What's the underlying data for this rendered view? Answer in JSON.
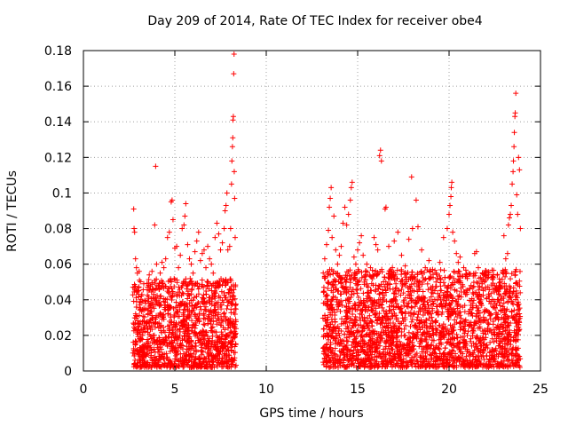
{
  "chart_data": {
    "type": "scatter",
    "title": "Day 209 of 2014, Rate Of TEC Index for receiver obe4",
    "xlabel": "GPS time / hours",
    "ylabel": "ROTI / TECUs",
    "xlim": [
      0,
      25
    ],
    "ylim": [
      0,
      0.18
    ],
    "x_ticks": [
      0,
      5,
      10,
      15,
      20,
      25
    ],
    "x_tick_labels": [
      "0",
      "5",
      "10",
      "15",
      "20",
      "25"
    ],
    "y_ticks": [
      0,
      0.02,
      0.04,
      0.06,
      0.08,
      0.1,
      0.12,
      0.14,
      0.16,
      0.18
    ],
    "y_tick_labels": [
      "0",
      "0.02",
      "0.04",
      "0.06",
      "0.08",
      "0.1",
      "0.12",
      "0.14",
      "0.16",
      "0.18"
    ],
    "grid": true,
    "marker": "+",
    "color": "#ff0000",
    "series": [
      {
        "points": [
          [
            2.75,
            0.091
          ],
          [
            2.77,
            0.08
          ],
          [
            2.8,
            0.078
          ],
          [
            2.85,
            0.063
          ],
          [
            2.9,
            0.058
          ],
          [
            2.95,
            0.055
          ],
          [
            3.0,
            0.045
          ],
          [
            3.05,
            0.056
          ],
          [
            3.2,
            0.043
          ],
          [
            3.3,
            0.049
          ],
          [
            3.4,
            0.038
          ],
          [
            3.5,
            0.047
          ],
          [
            3.6,
            0.054
          ],
          [
            3.75,
            0.056
          ],
          [
            3.9,
            0.082
          ],
          [
            3.95,
            0.115
          ],
          [
            4.0,
            0.06
          ],
          [
            4.1,
            0.048
          ],
          [
            4.2,
            0.055
          ],
          [
            4.3,
            0.061
          ],
          [
            4.4,
            0.058
          ],
          [
            4.5,
            0.063
          ],
          [
            4.6,
            0.075
          ],
          [
            4.7,
            0.078
          ],
          [
            4.8,
            0.095
          ],
          [
            4.85,
            0.096
          ],
          [
            4.9,
            0.085
          ],
          [
            5.0,
            0.069
          ],
          [
            5.1,
            0.07
          ],
          [
            5.2,
            0.058
          ],
          [
            5.3,
            0.065
          ],
          [
            5.4,
            0.08
          ],
          [
            5.5,
            0.082
          ],
          [
            5.55,
            0.087
          ],
          [
            5.6,
            0.094
          ],
          [
            5.7,
            0.071
          ],
          [
            5.8,
            0.063
          ],
          [
            5.9,
            0.06
          ],
          [
            6.0,
            0.055
          ],
          [
            6.1,
            0.067
          ],
          [
            6.2,
            0.073
          ],
          [
            6.3,
            0.078
          ],
          [
            6.4,
            0.062
          ],
          [
            6.5,
            0.066
          ],
          [
            6.6,
            0.068
          ],
          [
            6.7,
            0.058
          ],
          [
            6.8,
            0.07
          ],
          [
            6.9,
            0.063
          ],
          [
            7.0,
            0.06
          ],
          [
            7.1,
            0.055
          ],
          [
            7.2,
            0.075
          ],
          [
            7.3,
            0.083
          ],
          [
            7.4,
            0.077
          ],
          [
            7.5,
            0.068
          ],
          [
            7.6,
            0.072
          ],
          [
            7.7,
            0.08
          ],
          [
            7.75,
            0.09
          ],
          [
            7.8,
            0.093
          ],
          [
            7.85,
            0.1
          ],
          [
            7.9,
            0.068
          ],
          [
            8.0,
            0.07
          ],
          [
            8.05,
            0.08
          ],
          [
            8.1,
            0.105
          ],
          [
            8.12,
            0.118
          ],
          [
            8.15,
            0.126
          ],
          [
            8.17,
            0.131
          ],
          [
            8.18,
            0.141
          ],
          [
            8.2,
            0.143
          ],
          [
            8.22,
            0.167
          ],
          [
            8.24,
            0.178
          ],
          [
            8.25,
            0.112
          ],
          [
            8.27,
            0.097
          ],
          [
            8.3,
            0.075
          ],
          [
            13.2,
            0.063
          ],
          [
            13.3,
            0.071
          ],
          [
            13.4,
            0.079
          ],
          [
            13.45,
            0.092
          ],
          [
            13.5,
            0.097
          ],
          [
            13.55,
            0.103
          ],
          [
            13.6,
            0.075
          ],
          [
            13.7,
            0.087
          ],
          [
            13.8,
            0.068
          ],
          [
            13.9,
            0.06
          ],
          [
            14.0,
            0.065
          ],
          [
            14.1,
            0.07
          ],
          [
            14.2,
            0.083
          ],
          [
            14.3,
            0.092
          ],
          [
            14.4,
            0.082
          ],
          [
            14.5,
            0.088
          ],
          [
            14.6,
            0.096
          ],
          [
            14.65,
            0.103
          ],
          [
            14.7,
            0.106
          ],
          [
            14.8,
            0.064
          ],
          [
            14.9,
            0.06
          ],
          [
            15.0,
            0.068
          ],
          [
            15.1,
            0.072
          ],
          [
            15.2,
            0.076
          ],
          [
            15.3,
            0.065
          ],
          [
            15.5,
            0.06
          ],
          [
            15.7,
            0.058
          ],
          [
            15.9,
            0.075
          ],
          [
            16.0,
            0.071
          ],
          [
            16.1,
            0.068
          ],
          [
            16.2,
            0.121
          ],
          [
            16.25,
            0.124
          ],
          [
            16.3,
            0.118
          ],
          [
            16.5,
            0.091
          ],
          [
            16.55,
            0.092
          ],
          [
            16.7,
            0.07
          ],
          [
            16.9,
            0.058
          ],
          [
            17.0,
            0.073
          ],
          [
            17.2,
            0.078
          ],
          [
            17.4,
            0.065
          ],
          [
            17.6,
            0.059
          ],
          [
            17.8,
            0.074
          ],
          [
            17.95,
            0.109
          ],
          [
            18.0,
            0.08
          ],
          [
            18.2,
            0.096
          ],
          [
            18.3,
            0.081
          ],
          [
            18.5,
            0.068
          ],
          [
            18.7,
            0.058
          ],
          [
            18.9,
            0.062
          ],
          [
            19.1,
            0.057
          ],
          [
            19.3,
            0.055
          ],
          [
            19.5,
            0.061
          ],
          [
            19.7,
            0.075
          ],
          [
            19.9,
            0.08
          ],
          [
            20.0,
            0.088
          ],
          [
            20.05,
            0.093
          ],
          [
            20.1,
            0.098
          ],
          [
            20.12,
            0.103
          ],
          [
            20.15,
            0.106
          ],
          [
            20.2,
            0.078
          ],
          [
            20.3,
            0.073
          ],
          [
            20.4,
            0.066
          ],
          [
            20.5,
            0.061
          ],
          [
            20.6,
            0.064
          ],
          [
            20.8,
            0.058
          ],
          [
            21.0,
            0.052
          ],
          [
            21.2,
            0.048
          ],
          [
            21.4,
            0.066
          ],
          [
            21.5,
            0.067
          ],
          [
            21.6,
            0.058
          ],
          [
            21.8,
            0.05
          ],
          [
            22.0,
            0.047
          ],
          [
            22.2,
            0.042
          ],
          [
            22.4,
            0.046
          ],
          [
            22.6,
            0.045
          ],
          [
            22.8,
            0.05
          ],
          [
            23.0,
            0.076
          ],
          [
            23.1,
            0.063
          ],
          [
            23.2,
            0.066
          ],
          [
            23.25,
            0.082
          ],
          [
            23.3,
            0.086
          ],
          [
            23.35,
            0.088
          ],
          [
            23.4,
            0.093
          ],
          [
            23.45,
            0.105
          ],
          [
            23.5,
            0.112
          ],
          [
            23.52,
            0.118
          ],
          [
            23.55,
            0.126
          ],
          [
            23.57,
            0.134
          ],
          [
            23.6,
            0.143
          ],
          [
            23.62,
            0.145
          ],
          [
            23.65,
            0.156
          ],
          [
            23.7,
            0.099
          ],
          [
            23.75,
            0.088
          ],
          [
            23.8,
            0.12
          ],
          [
            23.85,
            0.113
          ],
          [
            23.9,
            0.08
          ]
        ],
        "dense_bands": [
          {
            "x_range": [
              2.7,
              8.35
            ],
            "y_range": [
              0.002,
              0.052
            ]
          },
          {
            "x_range": [
              13.1,
              23.9
            ],
            "y_range": [
              0.002,
              0.057
            ]
          }
        ]
      }
    ]
  }
}
